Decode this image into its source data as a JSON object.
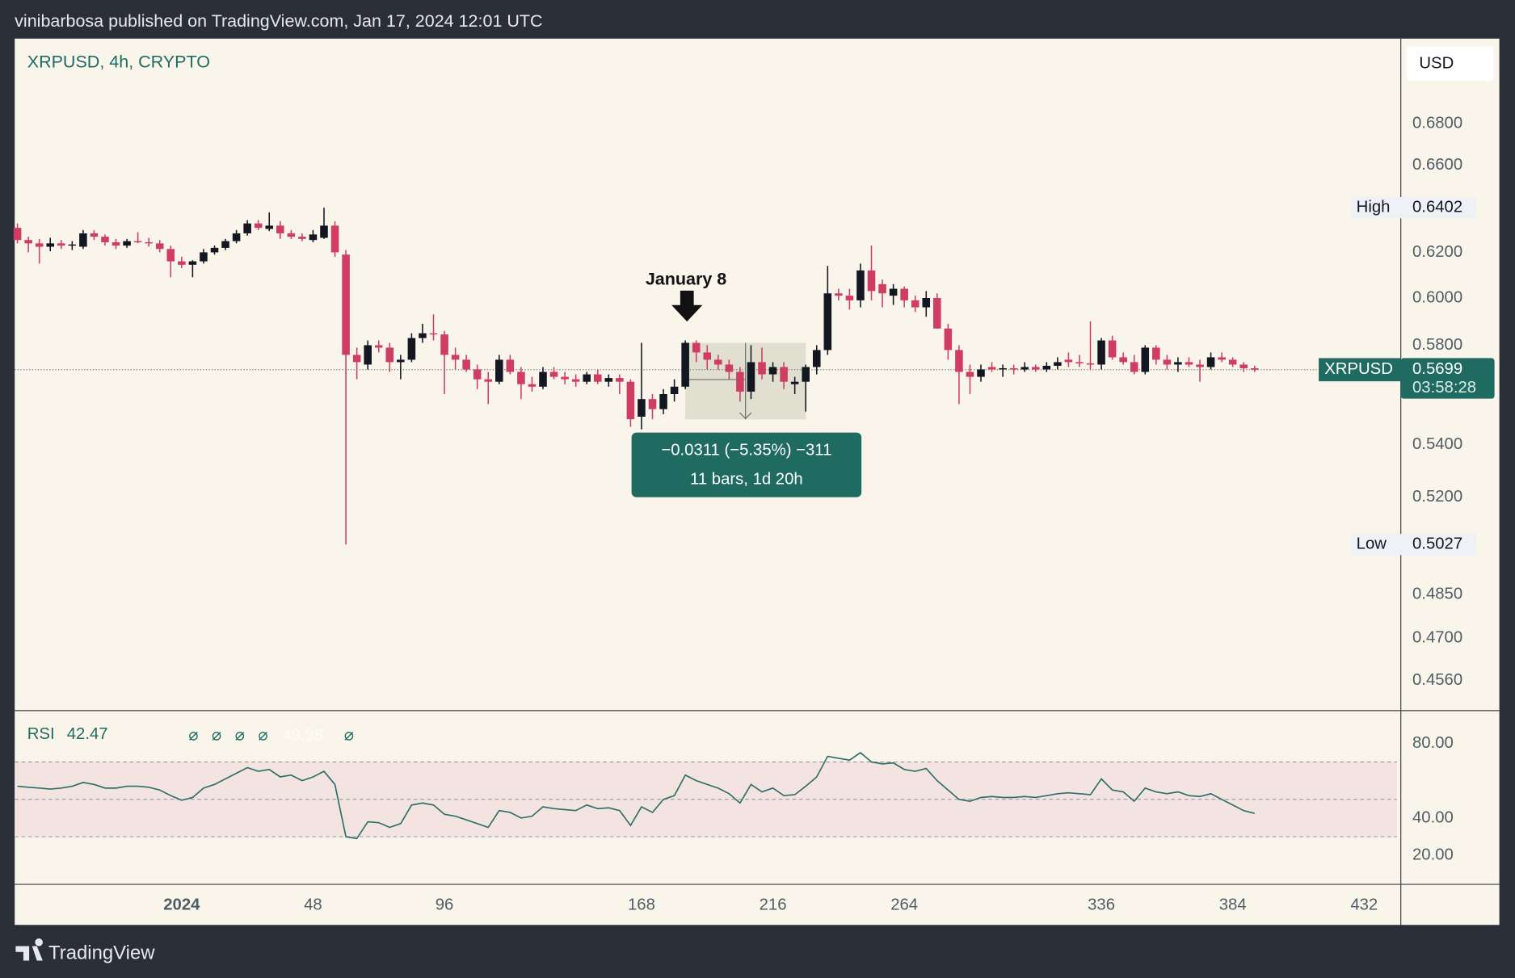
{
  "header": {
    "text": "vinibarbosa published on TradingView.com, Jan 17, 2024 12:01 UTC"
  },
  "footer": {
    "brand": "TradingView"
  },
  "chart_data": {
    "type": "candlestick",
    "title": "XRPUSD, 4h, CRYPTO",
    "currency": "USD",
    "log": true,
    "up_color": "#131722",
    "down_color": "#cf3d63",
    "xlim": [
      -61,
      445.4
    ],
    "xticks": [
      {
        "value": 0,
        "label": "2024"
      },
      48,
      96,
      168,
      216,
      264,
      336,
      384,
      432
    ],
    "ylim": [
      0.4462,
      0.7228
    ],
    "yticks": [
      {
        "value": 0.68,
        "label": "0.6800"
      },
      {
        "value": 0.66,
        "label": "0.6600"
      },
      {
        "value": 0.62,
        "label": "0.6200"
      },
      {
        "value": 0.6,
        "label": "0.6000"
      },
      {
        "value": 0.58,
        "label": "0.5800"
      },
      {
        "value": 0.54,
        "label": "0.5400"
      },
      {
        "value": 0.52,
        "label": "0.5200"
      },
      {
        "value": 0.485,
        "label": "0.4850"
      },
      {
        "value": 0.47,
        "label": "0.4700"
      },
      {
        "value": 0.456,
        "label": "0.4560"
      }
    ],
    "x": [
      -60,
      -56,
      -52,
      -48,
      -44,
      -40,
      -36,
      -32,
      -28,
      -24,
      -20,
      -16,
      -12,
      -8,
      -4,
      0,
      4,
      8,
      12,
      16,
      20,
      24,
      28,
      32,
      36,
      40,
      44,
      48,
      52,
      56,
      60,
      64,
      68,
      72,
      76,
      80,
      84,
      88,
      92,
      96,
      100,
      104,
      108,
      112,
      116,
      120,
      124,
      128,
      132,
      136,
      140,
      144,
      148,
      152,
      156,
      160,
      164,
      168,
      172,
      176,
      180,
      184,
      188,
      192,
      196,
      200,
      204,
      208,
      212,
      216,
      220,
      224,
      228,
      232,
      236,
      240,
      244,
      248,
      252,
      256,
      260,
      264,
      268,
      272,
      276,
      280,
      284,
      288,
      292,
      296,
      300,
      304,
      308,
      312,
      316,
      320,
      324,
      328,
      332,
      336,
      340,
      344,
      348,
      352,
      356,
      360,
      364,
      368,
      372,
      376,
      380,
      384,
      388,
      392
    ],
    "ohlc": [
      [
        0.631,
        0.633,
        0.624,
        0.6255
      ],
      [
        0.6255,
        0.627,
        0.62,
        0.624
      ],
      [
        0.624,
        0.626,
        0.615,
        0.6225
      ],
      [
        0.6225,
        0.6265,
        0.6205,
        0.624
      ],
      [
        0.624,
        0.6255,
        0.6215,
        0.623
      ],
      [
        0.623,
        0.625,
        0.621,
        0.6235
      ],
      [
        0.6225,
        0.63,
        0.6215,
        0.6285
      ],
      [
        0.6285,
        0.63,
        0.6255,
        0.627
      ],
      [
        0.627,
        0.628,
        0.623,
        0.6245
      ],
      [
        0.6245,
        0.626,
        0.6215,
        0.623
      ],
      [
        0.623,
        0.626,
        0.622,
        0.625
      ],
      [
        0.625,
        0.629,
        0.624,
        0.6245
      ],
      [
        0.6245,
        0.6265,
        0.6225,
        0.624
      ],
      [
        0.624,
        0.6255,
        0.62,
        0.6215
      ],
      [
        0.6215,
        0.623,
        0.609,
        0.616
      ],
      [
        0.616,
        0.618,
        0.613,
        0.6145
      ],
      [
        0.6145,
        0.6165,
        0.609,
        0.616
      ],
      [
        0.616,
        0.6215,
        0.615,
        0.62
      ],
      [
        0.62,
        0.623,
        0.619,
        0.622
      ],
      [
        0.622,
        0.626,
        0.621,
        0.625
      ],
      [
        0.625,
        0.63,
        0.624,
        0.6285
      ],
      [
        0.6285,
        0.6345,
        0.6275,
        0.633
      ],
      [
        0.633,
        0.6345,
        0.63,
        0.631
      ],
      [
        0.6305,
        0.638,
        0.6295,
        0.632
      ],
      [
        0.632,
        0.634,
        0.626,
        0.6285
      ],
      [
        0.6285,
        0.63,
        0.626,
        0.627
      ],
      [
        0.627,
        0.6285,
        0.625,
        0.626
      ],
      [
        0.6255,
        0.63,
        0.6245,
        0.628
      ],
      [
        0.6265,
        0.6402,
        0.626,
        0.632
      ],
      [
        0.632,
        0.634,
        0.618,
        0.62
      ],
      [
        0.619,
        0.621,
        0.5027,
        0.576
      ],
      [
        0.576,
        0.579,
        0.566,
        0.573
      ],
      [
        0.572,
        0.582,
        0.57,
        0.58
      ],
      [
        0.58,
        0.582,
        0.577,
        0.579
      ],
      [
        0.579,
        0.581,
        0.569,
        0.573
      ],
      [
        0.573,
        0.576,
        0.566,
        0.574
      ],
      [
        0.574,
        0.585,
        0.573,
        0.583
      ],
      [
        0.583,
        0.589,
        0.581,
        0.585
      ],
      [
        0.585,
        0.593,
        0.582,
        0.5845
      ],
      [
        0.5845,
        0.586,
        0.56,
        0.576
      ],
      [
        0.576,
        0.579,
        0.57,
        0.574
      ],
      [
        0.574,
        0.576,
        0.569,
        0.57
      ],
      [
        0.57,
        0.572,
        0.562,
        0.566
      ],
      [
        0.566,
        0.569,
        0.556,
        0.565
      ],
      [
        0.565,
        0.576,
        0.564,
        0.574
      ],
      [
        0.574,
        0.576,
        0.568,
        0.569
      ],
      [
        0.569,
        0.571,
        0.558,
        0.564
      ],
      [
        0.564,
        0.567,
        0.561,
        0.563
      ],
      [
        0.563,
        0.571,
        0.562,
        0.569
      ],
      [
        0.569,
        0.571,
        0.566,
        0.567
      ],
      [
        0.567,
        0.569,
        0.564,
        0.566
      ],
      [
        0.566,
        0.568,
        0.563,
        0.565
      ],
      [
        0.565,
        0.569,
        0.564,
        0.568
      ],
      [
        0.568,
        0.57,
        0.564,
        0.565
      ],
      [
        0.565,
        0.568,
        0.563,
        0.5665
      ],
      [
        0.5665,
        0.568,
        0.56,
        0.565
      ],
      [
        0.565,
        0.566,
        0.547,
        0.55
      ],
      [
        0.551,
        0.581,
        0.546,
        0.558
      ],
      [
        0.558,
        0.56,
        0.55,
        0.554
      ],
      [
        0.554,
        0.562,
        0.552,
        0.56
      ],
      [
        0.56,
        0.566,
        0.557,
        0.563
      ],
      [
        0.563,
        0.582,
        0.562,
        0.581
      ],
      [
        0.581,
        0.582,
        0.573,
        0.577
      ],
      [
        0.577,
        0.58,
        0.57,
        0.574
      ],
      [
        0.574,
        0.576,
        0.57,
        0.572
      ],
      [
        0.572,
        0.574,
        0.566,
        0.569
      ],
      [
        0.569,
        0.571,
        0.557,
        0.561
      ],
      [
        0.561,
        0.58,
        0.558,
        0.573
      ],
      [
        0.573,
        0.579,
        0.566,
        0.568
      ],
      [
        0.568,
        0.573,
        0.565,
        0.571
      ],
      [
        0.571,
        0.573,
        0.562,
        0.565
      ],
      [
        0.564,
        0.567,
        0.56,
        0.565
      ],
      [
        0.565,
        0.572,
        0.553,
        0.571
      ],
      [
        0.571,
        0.58,
        0.568,
        0.578
      ],
      [
        0.578,
        0.614,
        0.576,
        0.602
      ],
      [
        0.602,
        0.604,
        0.599,
        0.601
      ],
      [
        0.601,
        0.604,
        0.595,
        0.599
      ],
      [
        0.599,
        0.615,
        0.596,
        0.612
      ],
      [
        0.612,
        0.623,
        0.599,
        0.603
      ],
      [
        0.606,
        0.608,
        0.596,
        0.602
      ],
      [
        0.601,
        0.606,
        0.597,
        0.604
      ],
      [
        0.604,
        0.605,
        0.596,
        0.599
      ],
      [
        0.599,
        0.601,
        0.594,
        0.596
      ],
      [
        0.596,
        0.603,
        0.592,
        0.6
      ],
      [
        0.6,
        0.602,
        0.587,
        0.587
      ],
      [
        0.587,
        0.589,
        0.574,
        0.578
      ],
      [
        0.578,
        0.58,
        0.556,
        0.569
      ],
      [
        0.569,
        0.572,
        0.56,
        0.567
      ],
      [
        0.567,
        0.572,
        0.565,
        0.57
      ],
      [
        0.571,
        0.573,
        0.569,
        0.57
      ],
      [
        0.57,
        0.572,
        0.567,
        0.5705
      ],
      [
        0.5705,
        0.572,
        0.568,
        0.57
      ],
      [
        0.57,
        0.573,
        0.569,
        0.571
      ],
      [
        0.571,
        0.572,
        0.569,
        0.57
      ],
      [
        0.57,
        0.573,
        0.569,
        0.5715
      ],
      [
        0.5715,
        0.575,
        0.57,
        0.573
      ],
      [
        0.574,
        0.577,
        0.571,
        0.573
      ],
      [
        0.573,
        0.576,
        0.571,
        0.5725
      ],
      [
        0.5725,
        0.59,
        0.57,
        0.572
      ],
      [
        0.572,
        0.583,
        0.57,
        0.582
      ],
      [
        0.582,
        0.584,
        0.574,
        0.575
      ],
      [
        0.575,
        0.577,
        0.572,
        0.573
      ],
      [
        0.573,
        0.576,
        0.568,
        0.569
      ],
      [
        0.569,
        0.58,
        0.568,
        0.579
      ],
      [
        0.579,
        0.58,
        0.572,
        0.574
      ],
      [
        0.574,
        0.576,
        0.57,
        0.572
      ],
      [
        0.572,
        0.575,
        0.569,
        0.573
      ],
      [
        0.573,
        0.575,
        0.571,
        0.572
      ],
      [
        0.572,
        0.574,
        0.565,
        0.571
      ],
      [
        0.571,
        0.577,
        0.57,
        0.575
      ],
      [
        0.575,
        0.577,
        0.573,
        0.574
      ],
      [
        0.574,
        0.575,
        0.571,
        0.572
      ],
      [
        0.572,
        0.573,
        0.569,
        0.5705
      ],
      [
        0.5705,
        0.5715,
        0.569,
        0.5699
      ]
    ],
    "high_label": "High",
    "low_label": "Low",
    "last_label": "XRPUSD",
    "countdown": "03:58:28",
    "annotation": "January 8",
    "measure": {
      "from": 0.581,
      "to": 0.5499,
      "x": [
        184,
        228
      ],
      "delta_label": "−0.0311 (−5.35%) −311",
      "bars_label": "11 bars, 1d 20h"
    },
    "rsi": {
      "label": "RSI",
      "color": "#2f6f68",
      "band_color": "#f3e4e1",
      "ylim": [
        4.5,
        97
      ],
      "yticks": [
        {
          "value": 80,
          "label": "80.00"
        },
        {
          "value": 40,
          "label": "40.00"
        },
        {
          "value": 20,
          "label": "20.00"
        }
      ],
      "bands": [
        70,
        50,
        30
      ],
      "params": [
        "⌀",
        "⌀",
        "⌀",
        "⌀",
        "49.98",
        "⌀"
      ],
      "values": [
        57,
        56.5,
        56,
        55.5,
        56,
        57,
        59,
        58,
        56,
        56,
        57,
        57,
        56.5,
        55,
        52,
        49.5,
        51,
        56,
        58,
        61,
        64,
        67,
        65,
        66,
        62,
        63,
        60,
        62,
        65,
        58,
        30,
        29,
        38,
        37.5,
        35,
        37,
        47,
        48,
        47,
        42,
        41,
        39,
        37,
        35,
        44,
        43,
        40,
        41,
        46,
        45,
        44.5,
        44,
        47,
        45,
        45.5,
        44,
        36,
        46,
        43,
        50,
        52,
        63,
        60,
        58,
        56,
        53,
        48,
        58,
        54,
        56,
        52,
        52.5,
        57,
        62,
        73,
        72,
        71,
        75,
        70,
        69,
        69.5,
        66,
        65,
        66.5,
        60,
        55,
        50,
        49,
        51,
        51.5,
        51,
        51,
        51.5,
        51,
        52,
        53,
        53.5,
        53,
        52.5,
        61,
        55,
        54,
        49,
        56,
        54,
        53,
        54,
        52,
        51.5,
        53,
        50,
        47,
        44,
        42.47
      ]
    }
  }
}
